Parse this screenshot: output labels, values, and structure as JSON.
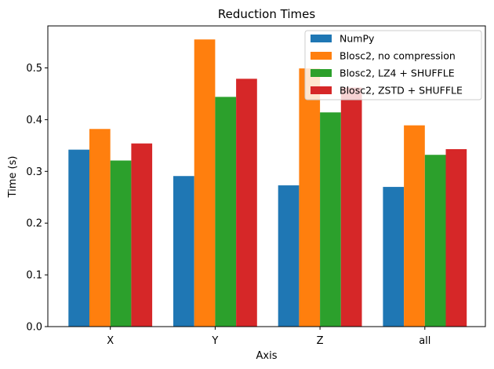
{
  "chart_data": {
    "type": "bar",
    "title": "Reduction Times",
    "xlabel": "Axis",
    "ylabel": "Time (s)",
    "categories": [
      "X",
      "Y",
      "Z",
      "all"
    ],
    "ylim": [
      0,
      0.58
    ],
    "yticks": [
      "0.0",
      "0.1",
      "0.2",
      "0.3",
      "0.4",
      "0.5"
    ],
    "grid": false,
    "legend_position": "top-right",
    "series": [
      {
        "name": "NumPy",
        "color": "#1f77b4",
        "values": [
          0.342,
          0.291,
          0.273,
          0.27
        ]
      },
      {
        "name": "Blosc2, no compression",
        "color": "#ff7f0e",
        "values": [
          0.382,
          0.555,
          0.499,
          0.389
        ]
      },
      {
        "name": "Blosc2, LZ4 + SHUFFLE",
        "color": "#2ca02c",
        "values": [
          0.321,
          0.444,
          0.414,
          0.332
        ]
      },
      {
        "name": "Blosc2, ZSTD + SHUFFLE",
        "color": "#d62728",
        "values": [
          0.354,
          0.479,
          0.462,
          0.343
        ]
      }
    ]
  }
}
